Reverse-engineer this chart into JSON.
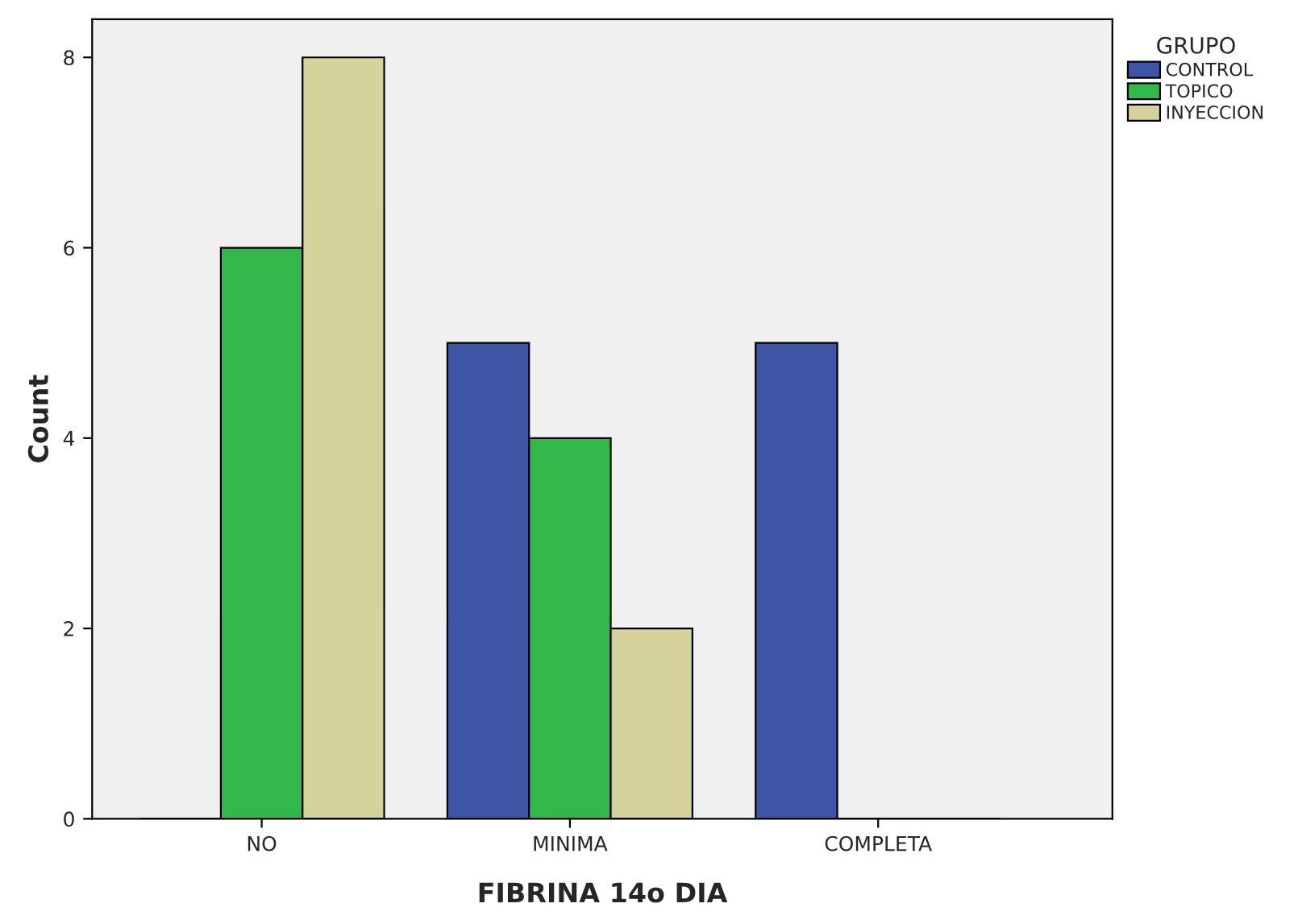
{
  "chart_data": {
    "type": "bar",
    "xlabel": "FIBRINA 14o DIA",
    "ylabel": "Count",
    "legend_title": "GRUPO",
    "legend": "top right",
    "categories": [
      "NO",
      "MINIMA",
      "COMPLETA"
    ],
    "series": [
      {
        "name": "CONTROL",
        "color": "#3f56a6",
        "values": [
          0,
          5,
          5
        ]
      },
      {
        "name": "TOPICO",
        "color": "#33b94a",
        "values": [
          6,
          4,
          0
        ]
      },
      {
        "name": "INYECCION",
        "color": "#d6d29b",
        "values": [
          8,
          2,
          0
        ]
      }
    ],
    "ylim": [
      0,
      8.4
    ],
    "yticks": [
      0,
      2,
      4,
      6,
      8
    ],
    "grid": false
  }
}
